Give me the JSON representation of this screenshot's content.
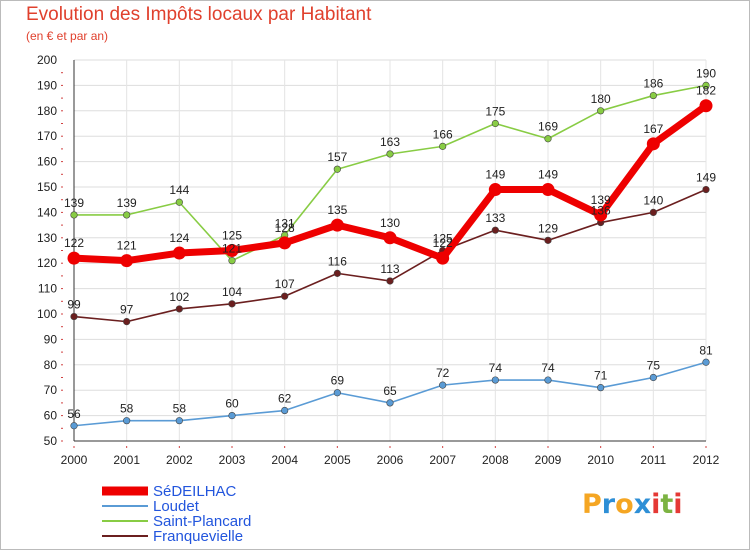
{
  "header": {
    "title": "Evolution des Impôts locaux par Habitant",
    "subtitle": "(en € et par an)"
  },
  "logo": {
    "letters": [
      "P",
      "r",
      "o",
      "x",
      "i",
      "t",
      "i"
    ],
    "colors": [
      "#f5a623",
      "#2e8fd6",
      "#f5a623",
      "#2e8fd6",
      "#e53935",
      "#7cb342",
      "#e53935"
    ]
  },
  "chart_data": {
    "type": "line",
    "title": "Evolution des Impôts locaux par Habitant",
    "subtitle": "(en € et par an)",
    "xlabel": "",
    "ylabel": "",
    "ylim": [
      50,
      200
    ],
    "yticks": [
      50,
      60,
      70,
      80,
      90,
      100,
      110,
      120,
      130,
      140,
      150,
      160,
      170,
      180,
      190,
      200
    ],
    "grid": true,
    "legend": "bottom-left",
    "x": [
      "2000",
      "2001",
      "2002",
      "2003",
      "2004",
      "2005",
      "2006",
      "2007",
      "2008",
      "2009",
      "2010",
      "2011",
      "2012"
    ],
    "series": [
      {
        "name": "SéDEILHAC",
        "color": "#ee0000",
        "legend_color": "#2255dd",
        "values": [
          122,
          121,
          124,
          125,
          128,
          135,
          130,
          122,
          149,
          149,
          139,
          167,
          182
        ]
      },
      {
        "name": "Loudet",
        "color": "#5a9bd5",
        "legend_color": "#2255dd",
        "values": [
          56,
          58,
          58,
          60,
          62,
          69,
          65,
          72,
          74,
          74,
          71,
          75,
          81
        ]
      },
      {
        "name": "Saint-Plancard",
        "color": "#88cc44",
        "legend_color": "#2255dd",
        "values": [
          139,
          139,
          144,
          121,
          131,
          157,
          163,
          166,
          175,
          169,
          180,
          186,
          190
        ]
      },
      {
        "name": "Franquevielle",
        "color": "#6b1f1f",
        "legend_color": "#2255dd",
        "values": [
          99,
          97,
          102,
          104,
          107,
          116,
          113,
          125,
          133,
          129,
          136,
          140,
          149
        ]
      }
    ]
  }
}
